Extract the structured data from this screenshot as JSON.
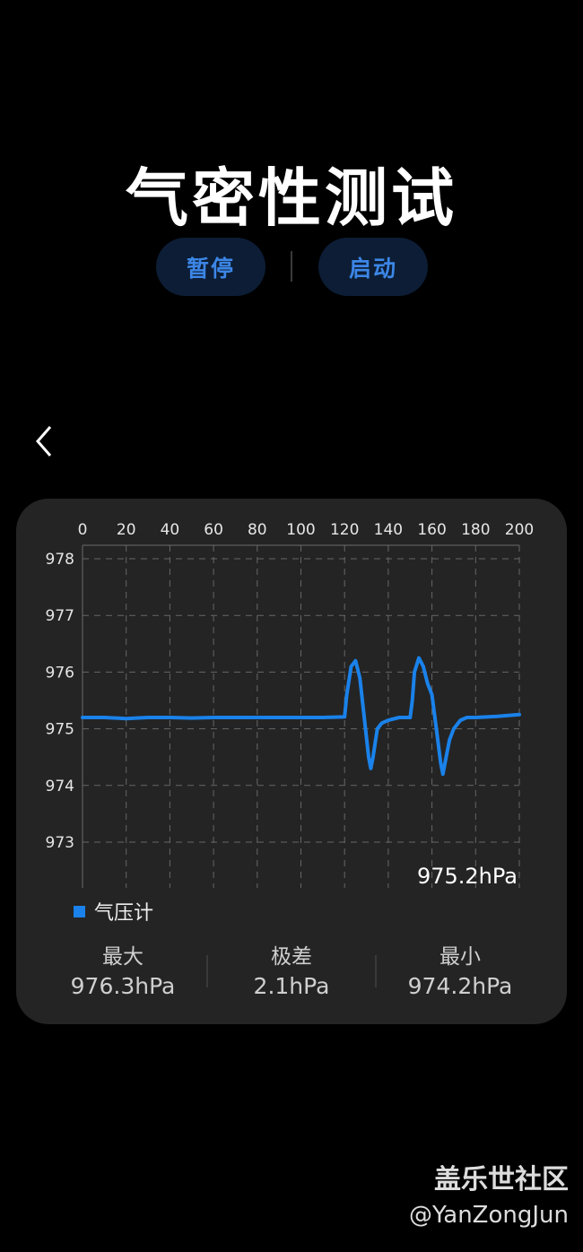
{
  "header": {
    "title": "气密性测试",
    "pause_label": "暂停",
    "start_label": "启动"
  },
  "nav": {
    "back_icon": "chevron-left-icon"
  },
  "chart_data": {
    "type": "line",
    "x_ticks": [
      "0",
      "20",
      "40",
      "60",
      "80",
      "100",
      "120",
      "140",
      "160",
      "180",
      "200"
    ],
    "y_ticks": [
      "978",
      "977",
      "976",
      "975",
      "974",
      "973"
    ],
    "xlim": [
      0,
      200
    ],
    "ylim": [
      972.2,
      978.25
    ],
    "grid": true,
    "legend_position": "bottom-left",
    "current_value_label": "975.2hPa",
    "series": [
      {
        "name": "气压计",
        "color": "#1a82ea",
        "x": [
          0,
          10,
          20,
          30,
          40,
          50,
          60,
          70,
          80,
          90,
          100,
          110,
          120,
          121,
          123,
          125,
          127,
          129,
          131,
          132,
          133,
          135,
          137,
          140,
          145,
          150,
          151,
          152,
          154,
          156,
          158,
          160,
          162,
          164,
          165,
          166,
          168,
          170,
          173,
          176,
          180,
          190,
          200
        ],
        "y": [
          975.2,
          975.2,
          975.18,
          975.2,
          975.2,
          975.19,
          975.2,
          975.2,
          975.2,
          975.2,
          975.2,
          975.2,
          975.21,
          975.6,
          976.1,
          976.2,
          975.9,
          975.2,
          974.5,
          974.3,
          974.5,
          975.0,
          975.1,
          975.15,
          975.2,
          975.2,
          975.5,
          976.0,
          976.25,
          976.1,
          975.8,
          975.6,
          975.0,
          974.4,
          974.2,
          974.4,
          974.8,
          975.0,
          975.15,
          975.2,
          975.2,
          975.22,
          975.25
        ]
      }
    ]
  },
  "stats": {
    "max_label": "最大",
    "max_value": "976.3hPa",
    "range_label": "极差",
    "range_value": "2.1hPa",
    "min_label": "最小",
    "min_value": "974.2hPa"
  },
  "watermark": {
    "line1": "盖乐世社区",
    "line2": "@YanZongJun"
  }
}
